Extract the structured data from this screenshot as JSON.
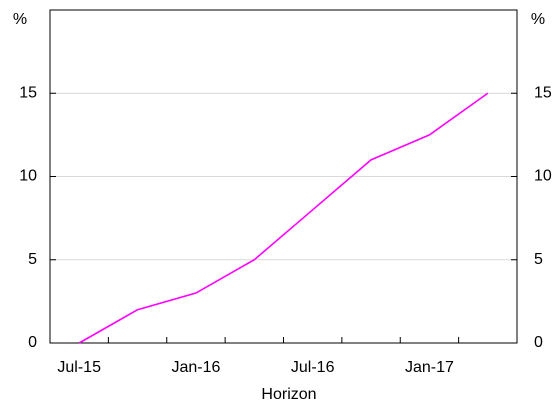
{
  "chart_data": {
    "type": "line",
    "categories": [
      "Jul-15",
      null,
      "Jan-16",
      null,
      "Jul-16",
      null,
      "Jan-17",
      null
    ],
    "series": [
      {
        "name": "Horizon",
        "color": "#ff00ff",
        "values": [
          0,
          2,
          3,
          5,
          8,
          11,
          12.5,
          15
        ]
      }
    ],
    "xlabel": "Horizon",
    "ylabel": "%",
    "y2label": "%",
    "ylim": [
      0,
      20
    ],
    "yticks": [
      0,
      5,
      10,
      15
    ],
    "y2lim": [
      0,
      20
    ],
    "y2ticks": [
      0,
      5,
      10,
      15
    ],
    "grid": true
  }
}
